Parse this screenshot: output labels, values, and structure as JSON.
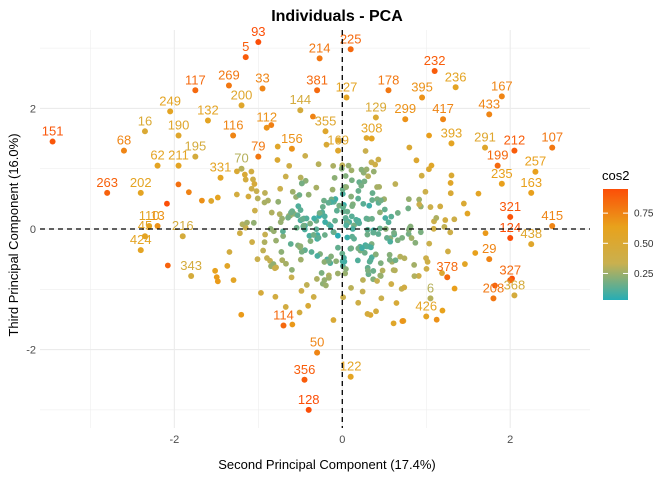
{
  "chart_data": {
    "type": "scatter",
    "title": "Individuals - PCA",
    "xlabel": "Second Principal Component (17.4%)",
    "ylabel": "Third Principal Component (16.0%)",
    "xlim": [
      -3.6,
      2.95
    ],
    "ylim": [
      -3.3,
      3.3
    ],
    "x_ticks": [
      -2,
      0,
      2
    ],
    "x_tick_labels": [
      "-2",
      "0",
      "2"
    ],
    "y_ticks": [
      -2,
      0,
      2
    ],
    "y_tick_labels": [
      "-2",
      "0",
      "2"
    ],
    "grid": true,
    "reference_lines": {
      "x": 0,
      "y": 0,
      "style": "dashed"
    },
    "legend": {
      "title": "cos2",
      "placement": "right",
      "gradient": [
        "#26adb5",
        "#c9b04f",
        "#e8a21c",
        "#fc4e07"
      ],
      "min": 0.03,
      "max": 0.95,
      "ticks": [
        0.25,
        0.5,
        0.75
      ],
      "tick_labels": [
        "0.25",
        "0.50",
        "0.75"
      ]
    },
    "labeled_points": [
      {
        "label": "93",
        "x": -1.0,
        "y": 3.1,
        "cos2": 0.95
      },
      {
        "label": "225",
        "x": 0.1,
        "y": 2.98,
        "cos2": 0.85
      },
      {
        "label": "5",
        "x": -1.15,
        "y": 2.85,
        "cos2": 0.9
      },
      {
        "label": "214",
        "x": -0.27,
        "y": 2.83,
        "cos2": 0.8
      },
      {
        "label": "232",
        "x": 1.1,
        "y": 2.62,
        "cos2": 0.9
      },
      {
        "label": "117",
        "x": -1.75,
        "y": 2.3,
        "cos2": 0.85
      },
      {
        "label": "269",
        "x": -1.35,
        "y": 2.38,
        "cos2": 0.8
      },
      {
        "label": "33",
        "x": -0.95,
        "y": 2.33,
        "cos2": 0.75
      },
      {
        "label": "381",
        "x": -0.3,
        "y": 2.3,
        "cos2": 0.85
      },
      {
        "label": "178",
        "x": 0.55,
        "y": 2.3,
        "cos2": 0.8
      },
      {
        "label": "236",
        "x": 1.35,
        "y": 2.35,
        "cos2": 0.6
      },
      {
        "label": "167",
        "x": 1.9,
        "y": 2.2,
        "cos2": 0.75
      },
      {
        "label": "127",
        "x": 0.05,
        "y": 2.18,
        "cos2": 0.6
      },
      {
        "label": "395",
        "x": 0.95,
        "y": 2.18,
        "cos2": 0.7
      },
      {
        "label": "249",
        "x": -2.05,
        "y": 1.95,
        "cos2": 0.6
      },
      {
        "label": "200",
        "x": -1.2,
        "y": 2.05,
        "cos2": 0.55
      },
      {
        "label": "144",
        "x": -0.5,
        "y": 1.97,
        "cos2": 0.45
      },
      {
        "label": "433",
        "x": 1.75,
        "y": 1.9,
        "cos2": 0.75
      },
      {
        "label": "129",
        "x": 0.4,
        "y": 1.85,
        "cos2": 0.5
      },
      {
        "label": "299",
        "x": 0.75,
        "y": 1.82,
        "cos2": 0.7
      },
      {
        "label": "417",
        "x": 1.2,
        "y": 1.82,
        "cos2": 0.75
      },
      {
        "label": "132",
        "x": -1.6,
        "y": 1.8,
        "cos2": 0.6
      },
      {
        "label": "112",
        "x": -0.9,
        "y": 1.68,
        "cos2": 0.7
      },
      {
        "label": "355",
        "x": -0.2,
        "y": 1.62,
        "cos2": 0.55
      },
      {
        "label": "16",
        "x": -2.35,
        "y": 1.62,
        "cos2": 0.5
      },
      {
        "label": "190",
        "x": -1.95,
        "y": 1.55,
        "cos2": 0.55
      },
      {
        "label": "116",
        "x": -1.3,
        "y": 1.55,
        "cos2": 0.75
      },
      {
        "label": "308",
        "x": 0.35,
        "y": 1.5,
        "cos2": 0.6
      },
      {
        "label": "151",
        "x": -3.45,
        "y": 1.45,
        "cos2": 0.92
      },
      {
        "label": "393",
        "x": 1.3,
        "y": 1.42,
        "cos2": 0.6
      },
      {
        "label": "291",
        "x": 1.7,
        "y": 1.35,
        "cos2": 0.55
      },
      {
        "label": "107",
        "x": 2.5,
        "y": 1.35,
        "cos2": 0.8
      },
      {
        "label": "156",
        "x": -0.6,
        "y": 1.33,
        "cos2": 0.7
      },
      {
        "label": "169",
        "x": -0.05,
        "y": 1.3,
        "cos2": 0.55
      },
      {
        "label": "68",
        "x": -2.6,
        "y": 1.3,
        "cos2": 0.75
      },
      {
        "label": "212",
        "x": 2.05,
        "y": 1.3,
        "cos2": 0.9
      },
      {
        "label": "195",
        "x": -1.75,
        "y": 1.2,
        "cos2": 0.45
      },
      {
        "label": "79",
        "x": -1.0,
        "y": 1.2,
        "cos2": 0.8
      },
      {
        "label": "62",
        "x": -2.2,
        "y": 1.05,
        "cos2": 0.6
      },
      {
        "label": "211",
        "x": -1.95,
        "y": 1.05,
        "cos2": 0.6
      },
      {
        "label": "70",
        "x": -1.2,
        "y": 1.0,
        "cos2": 0.3
      },
      {
        "label": "199",
        "x": 1.85,
        "y": 1.05,
        "cos2": 0.85
      },
      {
        "label": "257",
        "x": 2.3,
        "y": 0.95,
        "cos2": 0.65
      },
      {
        "label": "331",
        "x": -1.45,
        "y": 0.85,
        "cos2": 0.6
      },
      {
        "label": "235",
        "x": 1.9,
        "y": 0.75,
        "cos2": 0.65
      },
      {
        "label": "263",
        "x": -2.8,
        "y": 0.6,
        "cos2": 0.88
      },
      {
        "label": "202",
        "x": -2.4,
        "y": 0.6,
        "cos2": 0.6
      },
      {
        "label": "163",
        "x": 2.25,
        "y": 0.6,
        "cos2": 0.65
      },
      {
        "label": "110",
        "x": -2.3,
        "y": 0.05,
        "cos2": 0.6
      },
      {
        "label": "13",
        "x": -2.2,
        "y": 0.05,
        "cos2": 0.7
      },
      {
        "label": "321",
        "x": 2.0,
        "y": 0.2,
        "cos2": 0.92
      },
      {
        "label": "415",
        "x": 2.5,
        "y": 0.05,
        "cos2": 0.75
      },
      {
        "label": "45",
        "x": -2.35,
        "y": -0.12,
        "cos2": 0.6
      },
      {
        "label": "216",
        "x": -1.9,
        "y": -0.12,
        "cos2": 0.45
      },
      {
        "label": "124",
        "x": 2.0,
        "y": -0.15,
        "cos2": 0.95
      },
      {
        "label": "424",
        "x": -2.4,
        "y": -0.35,
        "cos2": 0.6
      },
      {
        "label": "438",
        "x": 2.25,
        "y": -0.25,
        "cos2": 0.55
      },
      {
        "label": "29",
        "x": 1.75,
        "y": -0.5,
        "cos2": 0.75
      },
      {
        "label": "343",
        "x": -1.8,
        "y": -0.78,
        "cos2": 0.45
      },
      {
        "label": "378",
        "x": 1.25,
        "y": -0.8,
        "cos2": 0.85
      },
      {
        "label": "327",
        "x": 2.0,
        "y": -0.85,
        "cos2": 0.85
      },
      {
        "label": "6",
        "x": 1.05,
        "y": -1.15,
        "cos2": 0.3
      },
      {
        "label": "208",
        "x": 1.8,
        "y": -1.15,
        "cos2": 0.8
      },
      {
        "label": "368",
        "x": 2.05,
        "y": -1.1,
        "cos2": 0.45
      },
      {
        "label": "426",
        "x": 1.0,
        "y": -1.45,
        "cos2": 0.6
      },
      {
        "label": "114",
        "x": -0.7,
        "y": -1.6,
        "cos2": 0.85
      },
      {
        "label": "50",
        "x": -0.3,
        "y": -2.05,
        "cos2": 0.75
      },
      {
        "label": "356",
        "x": -0.45,
        "y": -2.5,
        "cos2": 0.9
      },
      {
        "label": "122",
        "x": 0.1,
        "y": -2.45,
        "cos2": 0.6
      },
      {
        "label": "128",
        "x": -0.4,
        "y": -3.0,
        "cos2": 0.95
      }
    ]
  }
}
